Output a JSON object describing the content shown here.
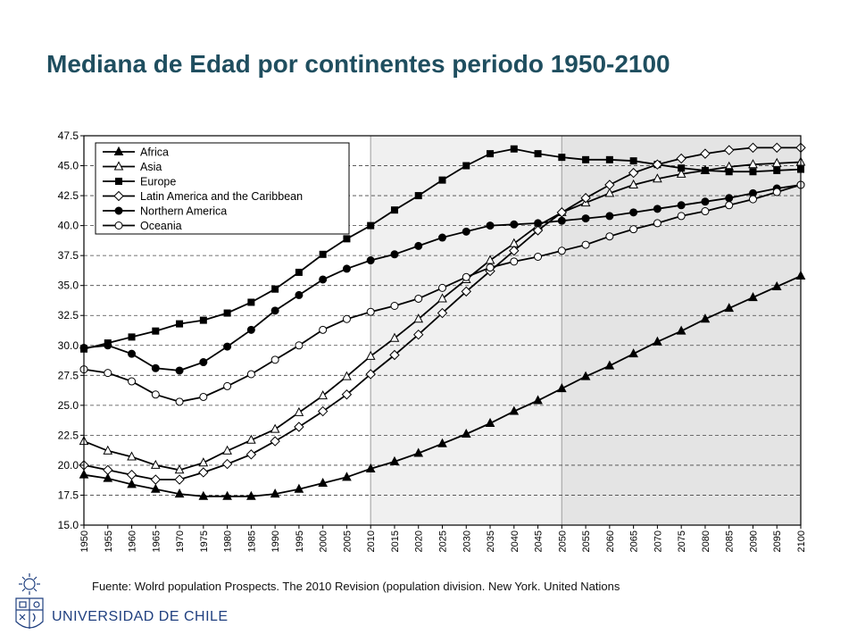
{
  "slide": {
    "title": "Mediana de Edad por continentes periodo 1950-2100",
    "source": "Fuente: Wolrd population Prospects. The 2010 Revision (population division. New York. United Nations",
    "university": "UNIVERSIDAD DE CHILE"
  },
  "chart_data": {
    "type": "line",
    "title": "",
    "xlabel": "",
    "ylabel": "",
    "x": [
      1950,
      1955,
      1960,
      1965,
      1970,
      1975,
      1980,
      1985,
      1990,
      1995,
      2000,
      2005,
      2010,
      2015,
      2020,
      2025,
      2030,
      2035,
      2040,
      2045,
      2050,
      2055,
      2060,
      2065,
      2070,
      2075,
      2080,
      2085,
      2090,
      2095,
      2100
    ],
    "ylim": [
      15.0,
      47.5
    ],
    "yticks": [
      "15.0",
      "17.5",
      "20.0",
      "22.5",
      "25.0",
      "27.5",
      "30.0",
      "32.5",
      "35.0",
      "37.5",
      "40.0",
      "42.5",
      "45.0",
      "47.5"
    ],
    "grid": "horizontal dashed",
    "shaded_regions": [
      {
        "from": 2010,
        "to": 2050,
        "color": "#f0f0f0"
      },
      {
        "from": 2050,
        "to": 2100,
        "color": "#e4e4e4"
      }
    ],
    "legend_position": "top-left",
    "series": [
      {
        "name": "Africa",
        "marker": "triangle-filled",
        "values": [
          19.2,
          18.9,
          18.4,
          18.0,
          17.6,
          17.4,
          17.4,
          17.4,
          17.6,
          18.0,
          18.5,
          19.0,
          19.7,
          20.3,
          21.0,
          21.8,
          22.6,
          23.5,
          24.5,
          25.4,
          26.4,
          27.4,
          28.3,
          29.3,
          30.3,
          31.2,
          32.2,
          33.1,
          34.0,
          34.9,
          35.8
        ]
      },
      {
        "name": "Asia",
        "marker": "triangle-open",
        "values": [
          22.0,
          21.2,
          20.7,
          20.0,
          19.6,
          20.2,
          21.2,
          22.1,
          23.0,
          24.4,
          25.8,
          27.4,
          29.1,
          30.6,
          32.2,
          33.9,
          35.5,
          37.1,
          38.5,
          40.0,
          41.1,
          41.9,
          42.7,
          43.4,
          43.9,
          44.3,
          44.6,
          44.9,
          45.1,
          45.2,
          45.3
        ]
      },
      {
        "name": "Europe",
        "marker": "square-filled",
        "values": [
          29.7,
          30.2,
          30.7,
          31.2,
          31.8,
          32.1,
          32.7,
          33.6,
          34.7,
          36.1,
          37.6,
          38.9,
          40.0,
          41.3,
          42.5,
          43.8,
          45.0,
          46.0,
          46.4,
          46.0,
          45.7,
          45.5,
          45.5,
          45.4,
          45.1,
          44.8,
          44.6,
          44.5,
          44.5,
          44.6,
          44.7
        ]
      },
      {
        "name": "Latin America and the Caribbean",
        "marker": "diamond-open",
        "values": [
          20.0,
          19.6,
          19.2,
          18.8,
          18.8,
          19.4,
          20.1,
          20.9,
          22.0,
          23.2,
          24.5,
          25.9,
          27.6,
          29.2,
          30.9,
          32.7,
          34.5,
          36.2,
          37.9,
          39.6,
          41.1,
          42.3,
          43.4,
          44.4,
          45.1,
          45.6,
          46.0,
          46.3,
          46.5,
          46.5,
          46.5
        ]
      },
      {
        "name": "Northern America",
        "marker": "circle-filled",
        "values": [
          29.8,
          30.0,
          29.3,
          28.1,
          27.9,
          28.6,
          29.9,
          31.3,
          32.9,
          34.2,
          35.5,
          36.4,
          37.1,
          37.6,
          38.3,
          39.0,
          39.5,
          40.0,
          40.1,
          40.2,
          40.4,
          40.6,
          40.8,
          41.1,
          41.4,
          41.7,
          42.0,
          42.3,
          42.7,
          43.1,
          43.4
        ]
      },
      {
        "name": "Oceania",
        "marker": "circle-open",
        "values": [
          28.0,
          27.7,
          27.0,
          25.9,
          25.3,
          25.7,
          26.6,
          27.6,
          28.8,
          30.0,
          31.3,
          32.2,
          32.8,
          33.3,
          33.9,
          34.8,
          35.7,
          36.5,
          37.0,
          37.4,
          37.9,
          38.4,
          39.1,
          39.7,
          40.2,
          40.8,
          41.2,
          41.7,
          42.2,
          42.8,
          43.4
        ]
      }
    ]
  }
}
